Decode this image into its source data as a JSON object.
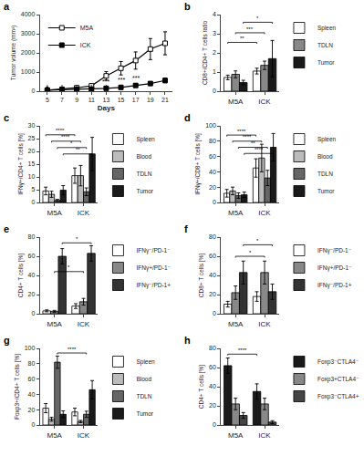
{
  "chart_data": [
    {
      "type": "line",
      "title": "a",
      "xlabel": "Days",
      "ylabel": "Tumor volume (mm³)",
      "x": [
        5,
        7,
        9,
        11,
        13,
        15,
        17,
        19,
        21
      ],
      "series": [
        {
          "name": "M5A",
          "color": "#000000",
          "marker": "square-open",
          "values": [
            50,
            100,
            180,
            280,
            800,
            1200,
            1600,
            2200,
            2500
          ],
          "errors": [
            20,
            40,
            60,
            100,
            220,
            350,
            450,
            550,
            600
          ]
        },
        {
          "name": "ICK",
          "color": "#000000",
          "marker": "square",
          "values": [
            50,
            70,
            90,
            110,
            150,
            200,
            300,
            400,
            560
          ],
          "errors": [
            15,
            20,
            30,
            40,
            50,
            65,
            85,
            100,
            120
          ]
        }
      ],
      "xlim": [
        4,
        22
      ],
      "xticks": [
        5,
        7,
        9,
        11,
        13,
        15,
        17,
        19,
        21
      ],
      "ylim": [
        0,
        4000
      ],
      "yticks": [
        0,
        1000,
        2000,
        3000,
        4000
      ],
      "grid": false,
      "legend": "upper left",
      "annotations": [
        {
          "x": 13,
          "text": "***"
        },
        {
          "x": 15,
          "text": "***"
        },
        {
          "x": 17,
          "text": "***"
        }
      ],
      "arrows": [
        5,
        7,
        9,
        11,
        13
      ]
    },
    {
      "type": "bar",
      "title": "b",
      "ylabel": "CD8+/CD4+ T cells ratio",
      "categories": [
        "M5A",
        "ICK"
      ],
      "series": [
        {
          "name": "Spleen",
          "color": "#ffffff",
          "values": [
            0.72,
            1.05
          ],
          "errors": [
            0.12,
            0.15
          ]
        },
        {
          "name": "TDLN",
          "color": "#888888",
          "values": [
            0.88,
            1.35
          ],
          "errors": [
            0.18,
            0.22
          ]
        },
        {
          "name": "Tumor",
          "color": "#1a1a1a",
          "values": [
            0.45,
            1.7
          ],
          "errors": [
            0.12,
            0.95
          ]
        }
      ],
      "ylim": [
        0,
        4
      ],
      "yticks": [
        0,
        1,
        2,
        3,
        4
      ],
      "grid": false,
      "legend": "right",
      "brackets": [
        {
          "series": "Spleen",
          "from": "M5A",
          "to": "ICK",
          "y": 2.55,
          "label": "**"
        },
        {
          "series": "TDLN",
          "from": "M5A",
          "to": "ICK",
          "y": 3.05,
          "label": "***"
        },
        {
          "series": "Tumor",
          "from": "M5A",
          "to": "ICK",
          "y": 3.6,
          "label": "*"
        }
      ]
    },
    {
      "type": "bar",
      "title": "c",
      "ylabel": "IFNγ+/CD4+ T cells [%]",
      "categories": [
        "M5A",
        "ICK"
      ],
      "series": [
        {
          "name": "Spleen",
          "color": "#ffffff",
          "values": [
            4.5,
            10.5
          ],
          "errors": [
            1.5,
            3.0
          ]
        },
        {
          "name": "Blood",
          "color": "#bbbbbb",
          "values": [
            3.2,
            10.5
          ],
          "errors": [
            1.2,
            4.0
          ]
        },
        {
          "name": "TDLN",
          "color": "#666666",
          "values": [
            0.8,
            4.2
          ],
          "errors": [
            0.4,
            1.5
          ]
        },
        {
          "name": "Tumor",
          "color": "#1a1a1a",
          "values": [
            4.8,
            19.0
          ],
          "errors": [
            1.8,
            6.5
          ]
        }
      ],
      "ylim": [
        0,
        30
      ],
      "yticks": [
        0,
        5,
        10,
        15,
        20,
        25,
        30
      ],
      "grid": false,
      "legend": "right",
      "brackets": [
        {
          "series": "Spleen",
          "from": "M5A",
          "to": "ICK",
          "y": 26.5,
          "label": "****"
        },
        {
          "series": "Blood",
          "from": "M5A",
          "to": "ICK",
          "y": 24.0,
          "label": "****"
        },
        {
          "series": "TDLN",
          "from": "M5A",
          "to": "ICK",
          "y": 21.5,
          "label": "*"
        },
        {
          "series": "Tumor",
          "from": "M5A",
          "to": "ICK",
          "y": 19.0,
          "label": "**"
        }
      ]
    },
    {
      "type": "bar",
      "title": "d",
      "ylabel": "IFNγ+/CD8+ T cells [%]",
      "categories": [
        "M5A",
        "ICK"
      ],
      "series": [
        {
          "name": "Spleen",
          "color": "#ffffff",
          "values": [
            12.0,
            45.0
          ],
          "errors": [
            5.0,
            12.0
          ]
        },
        {
          "name": "Blood",
          "color": "#bbbbbb",
          "values": [
            15.0,
            58.0
          ],
          "errors": [
            5.0,
            18.0
          ]
        },
        {
          "name": "TDLN",
          "color": "#666666",
          "values": [
            9.0,
            32.0
          ],
          "errors": [
            3.5,
            10.0
          ]
        },
        {
          "name": "Tumor",
          "color": "#1a1a1a",
          "values": [
            10.0,
            72.0
          ],
          "errors": [
            3.5,
            18.0
          ]
        }
      ],
      "ylim": [
        0,
        100
      ],
      "yticks": [
        0,
        20,
        40,
        60,
        80,
        100
      ],
      "grid": false,
      "legend": "right",
      "brackets": [
        {
          "series": "Spleen",
          "from": "M5A",
          "to": "ICK",
          "y": 88.0,
          "label": "****"
        },
        {
          "series": "Blood",
          "from": "M5A",
          "to": "ICK",
          "y": 80.0,
          "label": "****"
        },
        {
          "series": "TDLN",
          "from": "M5A",
          "to": "ICK",
          "y": 72.0,
          "label": "**"
        },
        {
          "series": "Tumor",
          "from": "M5A",
          "to": "ICK",
          "y": 64.0,
          "label": "****"
        }
      ]
    },
    {
      "type": "bar",
      "title": "e",
      "ylabel": "CD4+ T cells [%]",
      "categories": [
        "M5A",
        "ICK"
      ],
      "series": [
        {
          "name": "IFNγ⁻/PD-1⁻",
          "color": "#ffffff",
          "values": [
            3.0,
            8.0
          ],
          "errors": [
            1.0,
            2.5
          ]
        },
        {
          "name": "IFNγ+/PD-1⁻",
          "color": "#888888",
          "values": [
            2.5,
            12.5
          ],
          "errors": [
            1.0,
            3.5
          ]
        },
        {
          "name": "IFNγ⁻/PD-1+",
          "color": "#333333",
          "values": [
            60.0,
            63.0
          ],
          "errors": [
            8.0,
            8.0
          ]
        }
      ],
      "ylim": [
        0,
        80
      ],
      "yticks": [
        0,
        20,
        40,
        60,
        80
      ],
      "grid": false,
      "legend": "right",
      "brackets": [
        {
          "series": "IFNγ+/PD-1⁻",
          "from": "M5A",
          "to": "ICK",
          "y": 44.0,
          "label": "*"
        },
        {
          "series": "IFNγ⁻/PD-1+",
          "from": "M5A",
          "to": "ICK",
          "y": 74.0,
          "label": "*"
        }
      ]
    },
    {
      "type": "bar",
      "title": "f",
      "ylabel": "CD8+ T cells [%]",
      "categories": [
        "M5A",
        "ICK"
      ],
      "series": [
        {
          "name": "IFNγ⁻/PD-1⁻",
          "color": "#ffffff",
          "values": [
            10.0,
            18.0
          ],
          "errors": [
            3.0,
            5.0
          ]
        },
        {
          "name": "IFNγ+/PD-1⁻",
          "color": "#888888",
          "values": [
            22.0,
            43.0
          ],
          "errors": [
            7.0,
            12.0
          ]
        },
        {
          "name": "IFNγ⁻/PD-1+",
          "color": "#333333",
          "values": [
            43.0,
            23.0
          ],
          "errors": [
            12.0,
            8.0
          ]
        }
      ],
      "ylim": [
        0,
        80
      ],
      "yticks": [
        0,
        20,
        40,
        60,
        80
      ],
      "grid": false,
      "legend": "right",
      "brackets": [
        {
          "series": "IFNγ+/PD-1⁻",
          "from": "M5A",
          "to": "ICK",
          "y": 60.0,
          "label": "*"
        },
        {
          "series": "IFNγ⁻/PD-1+",
          "from": "M5A",
          "to": "ICK",
          "y": 72.0,
          "label": "*"
        }
      ]
    },
    {
      "type": "bar",
      "title": "g",
      "ylabel": "Foxp3+/CD4+ T cells [%]",
      "categories": [
        "M5A",
        "ICK"
      ],
      "series": [
        {
          "name": "Spleen",
          "color": "#ffffff",
          "values": [
            22.0,
            17.0
          ],
          "errors": [
            6.0,
            5.0
          ]
        },
        {
          "name": "Blood",
          "color": "#bbbbbb",
          "values": [
            7.5,
            4.5
          ],
          "errors": [
            2.5,
            1.5
          ]
        },
        {
          "name": "TDLN",
          "color": "#666666",
          "values": [
            82.0,
            14.0
          ],
          "errors": [
            8.0,
            4.0
          ]
        },
        {
          "name": "Tumor",
          "color": "#1a1a1a",
          "values": [
            14.0,
            46.0
          ],
          "errors": [
            4.5,
            12.0
          ]
        }
      ],
      "ylim": [
        0,
        100
      ],
      "yticks": [
        0,
        20,
        40,
        60,
        80,
        100
      ],
      "grid": false,
      "legend": "right",
      "brackets": [
        {
          "series": "TDLN",
          "from": "M5A",
          "to": "ICK",
          "y": 94.0,
          "label": "****"
        }
      ]
    },
    {
      "type": "bar",
      "title": "h",
      "ylabel": "CD4+ T cells [%]",
      "categories": [
        "M5A",
        "ICK"
      ],
      "series": [
        {
          "name": "Foxp3⁻CTLA4⁻",
          "color": "#1a1a1a",
          "values": [
            62.0,
            35.0
          ],
          "errors": [
            8.0,
            8.0
          ]
        },
        {
          "name": "Foxp3+CTLA4⁻",
          "color": "#888888",
          "values": [
            22.0,
            22.0
          ],
          "errors": [
            6.0,
            6.0
          ]
        },
        {
          "name": "Foxp3⁻CTLA4+",
          "color": "#444444",
          "values": [
            10.0,
            3.0
          ],
          "errors": [
            3.0,
            1.5
          ]
        }
      ],
      "ylim": [
        0,
        80
      ],
      "yticks": [
        0,
        20,
        40,
        60,
        80
      ],
      "grid": false,
      "legend": "right",
      "brackets": [
        {
          "series": "Foxp3⁻CTLA4⁻",
          "from": "M5A",
          "to": "ICK",
          "y": 74.0,
          "label": "****"
        }
      ]
    }
  ]
}
